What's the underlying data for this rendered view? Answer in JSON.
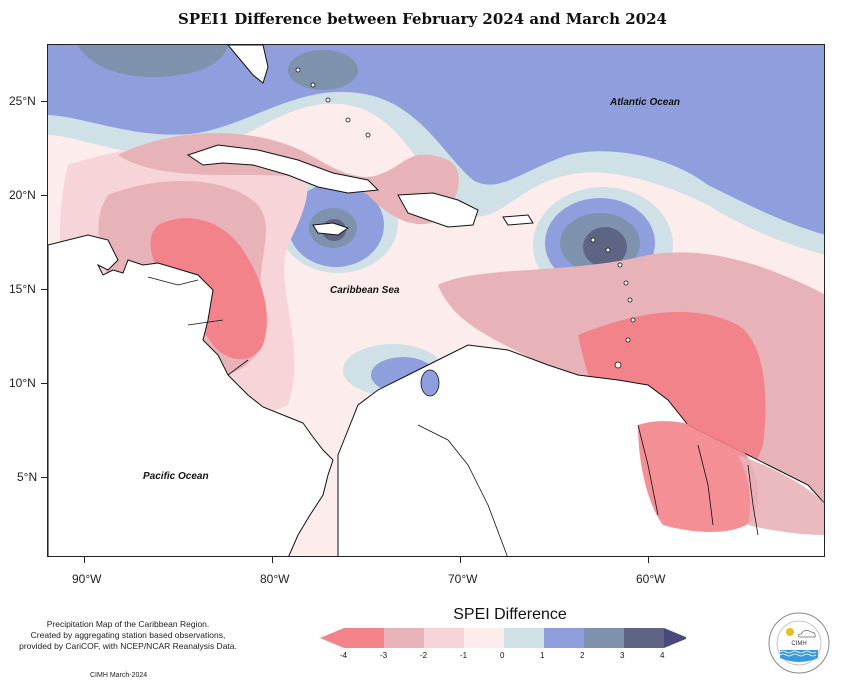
{
  "title": "SPEI1 Difference between February 2024 and March 2024",
  "map": {
    "latitude_labels": [
      "25°N",
      "20°N",
      "15°N",
      "10°N",
      "5°N"
    ],
    "longitude_labels": [
      "90°W",
      "80°W",
      "70°W",
      "60°W"
    ],
    "ocean_labels": {
      "atlantic": "Atlantic Ocean",
      "caribbean": "Caribbean Sea",
      "pacific": "Pacific Ocean"
    }
  },
  "legend": {
    "title": "SPEI Difference",
    "tick_labels": [
      "-4",
      "-3",
      "-2",
      "-1",
      "0",
      "1",
      "2",
      "3",
      "4"
    ],
    "colors": [
      "#f2838a",
      "#e8b3b8",
      "#f6d4d7",
      "#fcecec",
      "#cfe0e6",
      "#8f9fde",
      "#7e92ad",
      "#5e6484"
    ],
    "arrow_left_color": "#f2838a",
    "arrow_right_color": "#48487a"
  },
  "credits": {
    "line1": "Precipitation Map of the Caribbean Region.",
    "line2": "Created by aggregating station based observations,",
    "line3": "provided by CariCOF, with NCEP/NCAR Reanalysis Data.",
    "date": "CIMH March-2024"
  },
  "logo": {
    "name": "cimh-logo",
    "text": "CIMH"
  }
}
